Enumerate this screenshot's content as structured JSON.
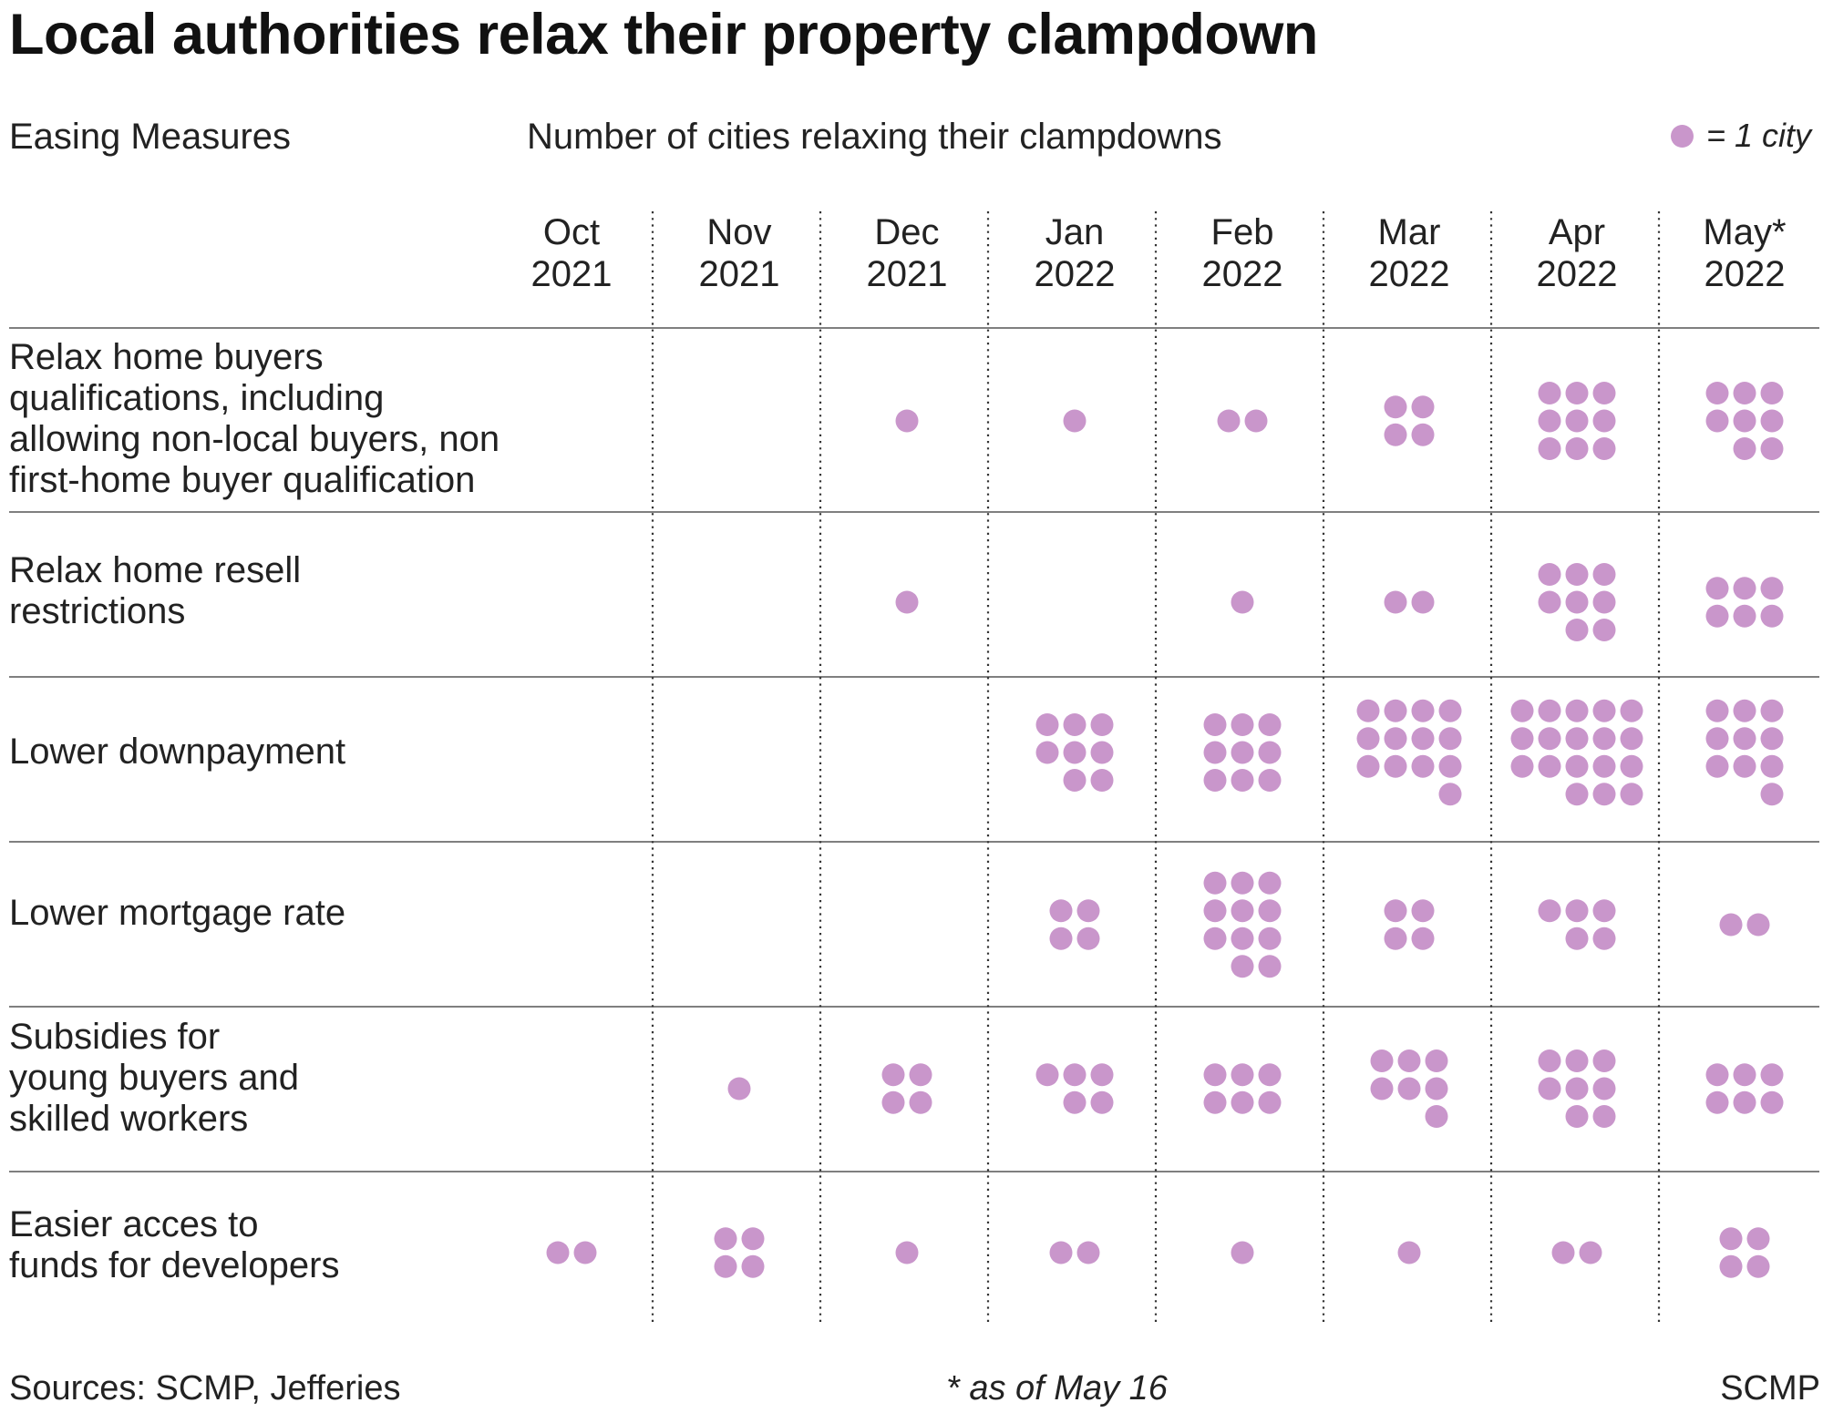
{
  "title": "Local authorities relax their property clampdown",
  "header": {
    "left": "Easing Measures",
    "center": "Number of cities relaxing their clampdowns",
    "legend": "= 1 city"
  },
  "footer": {
    "source": "Sources: SCMP, Jefferies",
    "note": "* as of May 16",
    "credit": "SCMP"
  },
  "colors": {
    "dot": "#c996cb",
    "rule": "#555555",
    "text": "#222222"
  },
  "chart_data": {
    "type": "table",
    "columns": [
      {
        "line1": "Oct",
        "line2": "2021"
      },
      {
        "line1": "Nov",
        "line2": "2021"
      },
      {
        "line1": "Dec",
        "line2": "2021"
      },
      {
        "line1": "Jan",
        "line2": "2022"
      },
      {
        "line1": "Feb",
        "line2": "2022"
      },
      {
        "line1": "Mar",
        "line2": "2022"
      },
      {
        "line1": "Apr",
        "line2": "2022"
      },
      {
        "line1": "May*",
        "line2": "2022"
      }
    ],
    "rows": [
      {
        "label_lines": [
          "Relax home buyers",
          "qualifications, including",
          "allowing non-local buyers, non",
          "first-home buyer qualification"
        ],
        "values": [
          0,
          0,
          1,
          1,
          2,
          4,
          9,
          8
        ]
      },
      {
        "label_lines": [
          "Relax home resell",
          "restrictions"
        ],
        "values": [
          0,
          0,
          1,
          0,
          1,
          2,
          8,
          6
        ]
      },
      {
        "label_lines": [
          "Lower downpayment"
        ],
        "values": [
          0,
          0,
          0,
          8,
          9,
          13,
          18,
          10
        ]
      },
      {
        "label_lines": [
          "Lower mortgage rate"
        ],
        "values": [
          0,
          0,
          0,
          4,
          11,
          4,
          5,
          2
        ]
      },
      {
        "label_lines": [
          "Subsidies for",
          "young buyers and",
          "skilled workers"
        ],
        "values": [
          0,
          1,
          4,
          5,
          6,
          7,
          8,
          6
        ]
      },
      {
        "label_lines": [
          "Easier acces to",
          "funds for developers"
        ],
        "values": [
          2,
          4,
          1,
          2,
          1,
          1,
          2,
          4
        ]
      }
    ]
  }
}
